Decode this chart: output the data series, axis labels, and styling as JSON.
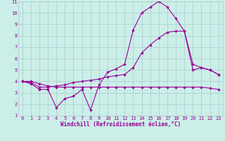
{
  "title": "",
  "xlabel": "Windchill (Refroidissement éolien,°C)",
  "ylabel": "",
  "background_color": "#cceee8",
  "grid_color": "#aacccc",
  "line_color": "#990099",
  "xlim": [
    -0.5,
    23.5
  ],
  "ylim": [
    1,
    11
  ],
  "xticks": [
    0,
    1,
    2,
    3,
    4,
    5,
    6,
    7,
    8,
    9,
    10,
    11,
    12,
    13,
    14,
    15,
    16,
    17,
    18,
    19,
    20,
    21,
    22,
    23
  ],
  "yticks": [
    1,
    2,
    3,
    4,
    5,
    6,
    7,
    8,
    9,
    10,
    11
  ],
  "line1_x": [
    0,
    1,
    2,
    3,
    4,
    5,
    6,
    7,
    8,
    9,
    10,
    11,
    12,
    13,
    14,
    15,
    16,
    17,
    18,
    19,
    20,
    21,
    22,
    23
  ],
  "line1_y": [
    4.0,
    3.8,
    3.3,
    3.3,
    1.7,
    2.5,
    2.7,
    3.3,
    1.5,
    3.7,
    4.8,
    5.1,
    5.5,
    8.5,
    10.0,
    10.5,
    11.0,
    10.5,
    9.5,
    8.4,
    5.0,
    5.2,
    5.0,
    4.6
  ],
  "line2_x": [
    0,
    1,
    2,
    3,
    4,
    5,
    6,
    7,
    8,
    9,
    10,
    11,
    12,
    13,
    14,
    15,
    16,
    17,
    18,
    19,
    20,
    21,
    22,
    23
  ],
  "line2_y": [
    4.0,
    3.9,
    3.5,
    3.5,
    3.6,
    3.7,
    3.9,
    4.0,
    4.1,
    4.2,
    4.4,
    4.5,
    4.6,
    5.2,
    6.5,
    7.2,
    7.8,
    8.3,
    8.4,
    8.4,
    5.5,
    5.2,
    5.0,
    4.6
  ],
  "line3_x": [
    0,
    1,
    2,
    3,
    4,
    5,
    6,
    7,
    8,
    9,
    10,
    11,
    12,
    13,
    14,
    15,
    16,
    17,
    18,
    19,
    20,
    21,
    22,
    23
  ],
  "line3_y": [
    4.0,
    4.0,
    3.8,
    3.6,
    3.5,
    3.5,
    3.5,
    3.5,
    3.5,
    3.5,
    3.5,
    3.5,
    3.5,
    3.5,
    3.5,
    3.5,
    3.5,
    3.5,
    3.5,
    3.5,
    3.5,
    3.5,
    3.4,
    3.3
  ],
  "marker_size": 2.2,
  "line_width": 0.8,
  "tick_fontsize": 5.0,
  "xlabel_fontsize": 5.5
}
